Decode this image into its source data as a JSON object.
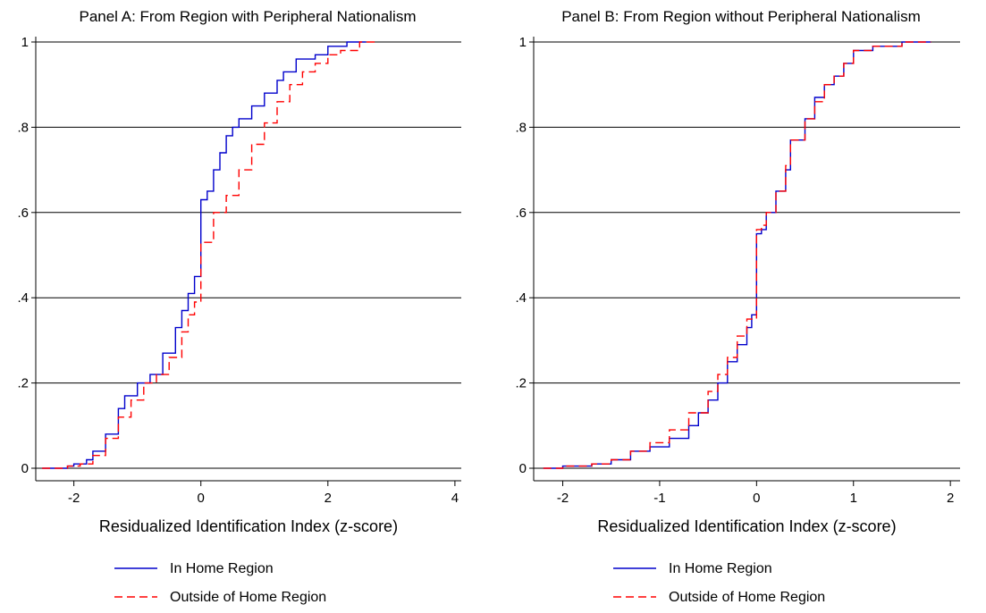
{
  "chart_data": [
    {
      "type": "line",
      "title": "Panel A: From Region with Peripheral Nationalism",
      "xlabel": "Residualized Identification Index (z-score)",
      "ylabel": "",
      "xlim": [
        -2.6,
        4.1
      ],
      "ylim": [
        0,
        1
      ],
      "x_ticks": [
        -2,
        0,
        2,
        4
      ],
      "x_tick_labels": [
        "-2",
        "0",
        "2",
        "4"
      ],
      "y_ticks": [
        0,
        0.2,
        0.4,
        0.6,
        0.8,
        1
      ],
      "y_tick_labels": [
        "0",
        ".2",
        ".4",
        ".6",
        ".8",
        "1"
      ],
      "grid": "horizontal",
      "legend_position": "bottom",
      "series": [
        {
          "name": "In Home Region",
          "color": "#0000cc",
          "style": "solid",
          "points": [
            [
              -2.5,
              0
            ],
            [
              -2.2,
              0
            ],
            [
              -2.1,
              0.005
            ],
            [
              -2.0,
              0.01
            ],
            [
              -1.8,
              0.02
            ],
            [
              -1.7,
              0.04
            ],
            [
              -1.5,
              0.08
            ],
            [
              -1.3,
              0.14
            ],
            [
              -1.2,
              0.17
            ],
            [
              -1.0,
              0.2
            ],
            [
              -0.8,
              0.22
            ],
            [
              -0.6,
              0.27
            ],
            [
              -0.4,
              0.33
            ],
            [
              -0.3,
              0.37
            ],
            [
              -0.2,
              0.41
            ],
            [
              -0.1,
              0.45
            ],
            [
              0.0,
              0.49
            ],
            [
              0.0,
              0.63
            ],
            [
              0.1,
              0.65
            ],
            [
              0.2,
              0.7
            ],
            [
              0.3,
              0.74
            ],
            [
              0.4,
              0.78
            ],
            [
              0.5,
              0.8
            ],
            [
              0.6,
              0.82
            ],
            [
              0.8,
              0.85
            ],
            [
              1.0,
              0.88
            ],
            [
              1.2,
              0.91
            ],
            [
              1.3,
              0.93
            ],
            [
              1.5,
              0.96
            ],
            [
              1.8,
              0.97
            ],
            [
              2.0,
              0.99
            ],
            [
              2.3,
              1.0
            ],
            [
              2.6,
              1.0
            ]
          ]
        },
        {
          "name": "Outside of Home Region",
          "color": "#ff0000",
          "style": "dashed",
          "points": [
            [
              -2.5,
              0
            ],
            [
              -2.3,
              0
            ],
            [
              -2.1,
              0.005
            ],
            [
              -1.9,
              0.01
            ],
            [
              -1.7,
              0.03
            ],
            [
              -1.5,
              0.07
            ],
            [
              -1.3,
              0.12
            ],
            [
              -1.1,
              0.16
            ],
            [
              -0.9,
              0.2
            ],
            [
              -0.7,
              0.22
            ],
            [
              -0.5,
              0.26
            ],
            [
              -0.3,
              0.32
            ],
            [
              -0.2,
              0.36
            ],
            [
              -0.1,
              0.39
            ],
            [
              0.0,
              0.41
            ],
            [
              0.0,
              0.53
            ],
            [
              0.2,
              0.6
            ],
            [
              0.4,
              0.64
            ],
            [
              0.6,
              0.7
            ],
            [
              0.8,
              0.76
            ],
            [
              1.0,
              0.81
            ],
            [
              1.2,
              0.86
            ],
            [
              1.4,
              0.9
            ],
            [
              1.6,
              0.93
            ],
            [
              1.8,
              0.95
            ],
            [
              2.0,
              0.97
            ],
            [
              2.2,
              0.98
            ],
            [
              2.5,
              1.0
            ],
            [
              2.8,
              1.0
            ]
          ]
        }
      ]
    },
    {
      "type": "line",
      "title": "Panel B: From Region without Peripheral Nationalism",
      "xlabel": "Residualized Identification Index (z-score)",
      "ylabel": "",
      "xlim": [
        -2.3,
        2.1
      ],
      "ylim": [
        0,
        1
      ],
      "x_ticks": [
        -2,
        -1,
        0,
        1,
        2
      ],
      "x_tick_labels": [
        "-2",
        "-1",
        "0",
        "1",
        "2"
      ],
      "y_ticks": [
        0,
        0.2,
        0.4,
        0.6,
        0.8,
        1
      ],
      "y_tick_labels": [
        "0",
        ".2",
        ".4",
        ".6",
        ".8",
        "1"
      ],
      "grid": "horizontal",
      "legend_position": "bottom",
      "series": [
        {
          "name": "In Home Region",
          "color": "#0000cc",
          "style": "solid",
          "points": [
            [
              -2.2,
              0
            ],
            [
              -2.0,
              0.005
            ],
            [
              -1.7,
              0.01
            ],
            [
              -1.5,
              0.02
            ],
            [
              -1.3,
              0.04
            ],
            [
              -1.1,
              0.05
            ],
            [
              -0.9,
              0.07
            ],
            [
              -0.7,
              0.1
            ],
            [
              -0.6,
              0.13
            ],
            [
              -0.5,
              0.16
            ],
            [
              -0.4,
              0.2
            ],
            [
              -0.3,
              0.25
            ],
            [
              -0.2,
              0.29
            ],
            [
              -0.1,
              0.33
            ],
            [
              -0.05,
              0.36
            ],
            [
              0.0,
              0.37
            ],
            [
              0.0,
              0.55
            ],
            [
              0.05,
              0.56
            ],
            [
              0.1,
              0.6
            ],
            [
              0.2,
              0.65
            ],
            [
              0.3,
              0.7
            ],
            [
              0.35,
              0.77
            ],
            [
              0.5,
              0.82
            ],
            [
              0.6,
              0.87
            ],
            [
              0.7,
              0.9
            ],
            [
              0.8,
              0.92
            ],
            [
              0.9,
              0.95
            ],
            [
              1.0,
              0.98
            ],
            [
              1.2,
              0.99
            ],
            [
              1.5,
              1.0
            ],
            [
              1.8,
              1.0
            ]
          ]
        },
        {
          "name": "Outside of Home Region",
          "color": "#ff0000",
          "style": "dashed",
          "points": [
            [
              -2.2,
              0
            ],
            [
              -2.0,
              0.005
            ],
            [
              -1.7,
              0.01
            ],
            [
              -1.5,
              0.02
            ],
            [
              -1.3,
              0.04
            ],
            [
              -1.1,
              0.06
            ],
            [
              -0.9,
              0.09
            ],
            [
              -0.7,
              0.13
            ],
            [
              -0.5,
              0.18
            ],
            [
              -0.4,
              0.22
            ],
            [
              -0.3,
              0.26
            ],
            [
              -0.2,
              0.31
            ],
            [
              -0.1,
              0.35
            ],
            [
              0.0,
              0.38
            ],
            [
              0.0,
              0.56
            ],
            [
              0.05,
              0.57
            ],
            [
              0.1,
              0.6
            ],
            [
              0.2,
              0.65
            ],
            [
              0.3,
              0.71
            ],
            [
              0.35,
              0.77
            ],
            [
              0.5,
              0.82
            ],
            [
              0.6,
              0.86
            ],
            [
              0.7,
              0.9
            ],
            [
              0.8,
              0.92
            ],
            [
              0.9,
              0.95
            ],
            [
              1.0,
              0.98
            ],
            [
              1.2,
              0.99
            ],
            [
              1.5,
              1.0
            ],
            [
              1.8,
              1.0
            ]
          ]
        }
      ]
    }
  ]
}
